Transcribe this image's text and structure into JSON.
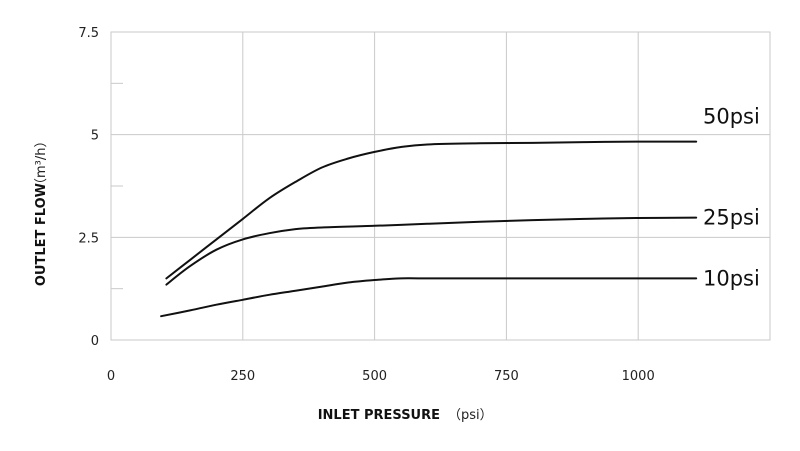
{
  "chart_data": {
    "type": "line",
    "xlabel": "INLET PRESSURE",
    "xlabel_unit": "（psi）",
    "ylabel": "OUTLET FLOW",
    "ylabel_unit": "（m³/h）",
    "xlim": [
      0,
      1250
    ],
    "ylim": [
      0,
      7.5
    ],
    "x_ticks": [
      0,
      250,
      500,
      750,
      1000
    ],
    "x_tick_labels": [
      "0",
      "250",
      "500",
      "750",
      "1000"
    ],
    "y_ticks": [
      0,
      2.5,
      5,
      7.5
    ],
    "y_tick_labels": [
      "0",
      "2.5",
      "5",
      "7.5"
    ],
    "grid": true,
    "series": [
      {
        "name": "50psi",
        "points": [
          [
            105,
            1.5
          ],
          [
            150,
            1.95
          ],
          [
            200,
            2.45
          ],
          [
            250,
            2.95
          ],
          [
            300,
            3.45
          ],
          [
            350,
            3.85
          ],
          [
            400,
            4.2
          ],
          [
            450,
            4.42
          ],
          [
            500,
            4.58
          ],
          [
            550,
            4.7
          ],
          [
            600,
            4.76
          ],
          [
            700,
            4.79
          ],
          [
            800,
            4.8
          ],
          [
            900,
            4.82
          ],
          [
            1000,
            4.83
          ],
          [
            1110,
            4.83
          ]
        ]
      },
      {
        "name": "25psi",
        "points": [
          [
            105,
            1.35
          ],
          [
            150,
            1.8
          ],
          [
            200,
            2.2
          ],
          [
            250,
            2.45
          ],
          [
            300,
            2.6
          ],
          [
            350,
            2.7
          ],
          [
            400,
            2.74
          ],
          [
            500,
            2.78
          ],
          [
            600,
            2.83
          ],
          [
            700,
            2.88
          ],
          [
            800,
            2.92
          ],
          [
            900,
            2.95
          ],
          [
            1000,
            2.97
          ],
          [
            1110,
            2.98
          ]
        ]
      },
      {
        "name": "10psi",
        "points": [
          [
            95,
            0.58
          ],
          [
            150,
            0.72
          ],
          [
            200,
            0.86
          ],
          [
            250,
            0.98
          ],
          [
            300,
            1.1
          ],
          [
            350,
            1.2
          ],
          [
            400,
            1.3
          ],
          [
            450,
            1.4
          ],
          [
            500,
            1.46
          ],
          [
            550,
            1.5
          ],
          [
            600,
            1.5
          ],
          [
            800,
            1.5
          ],
          [
            1000,
            1.5
          ],
          [
            1110,
            1.5
          ]
        ]
      }
    ]
  }
}
